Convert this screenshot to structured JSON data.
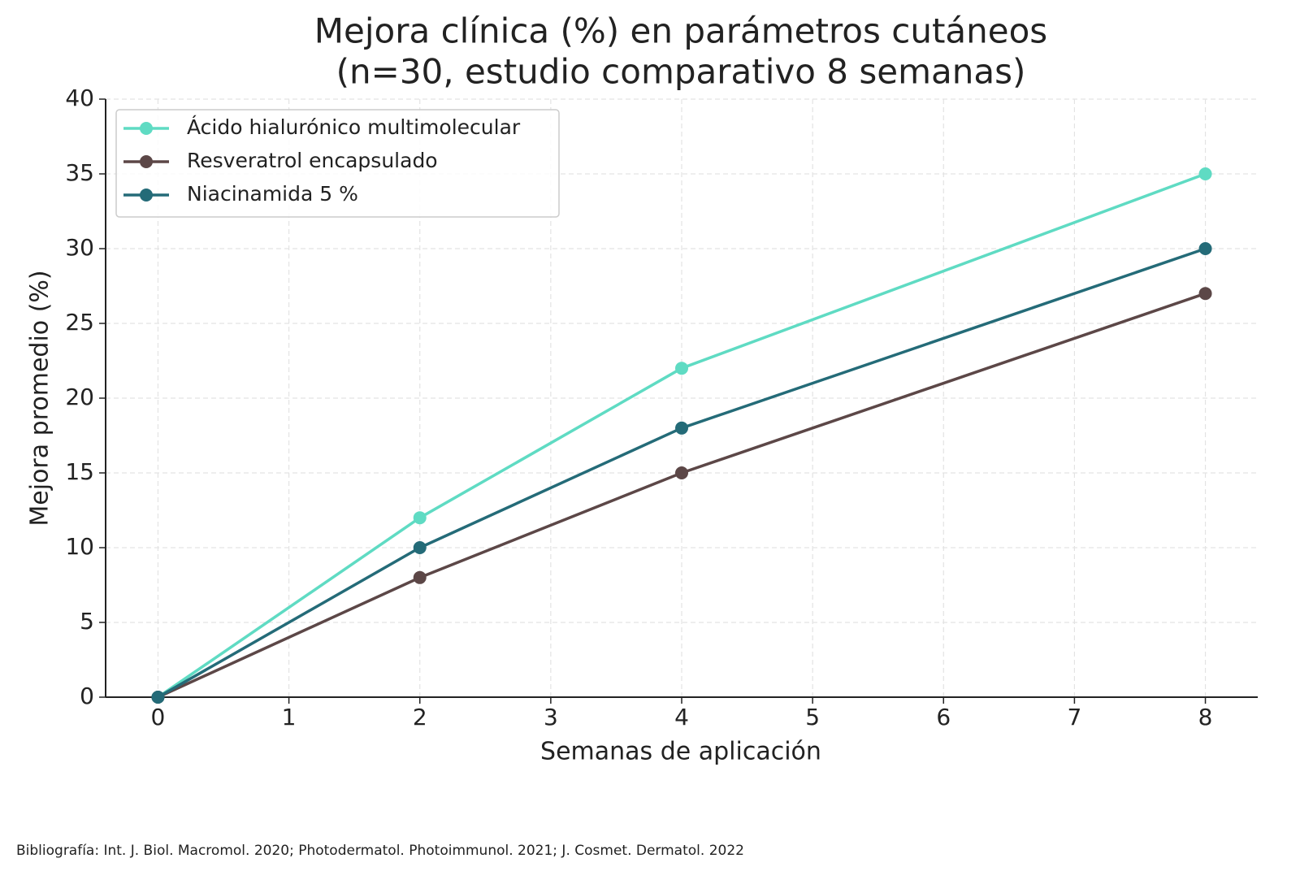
{
  "chart_data": {
    "type": "line",
    "title": [
      "Mejora clínica (%) en parámetros cutáneos",
      "(n=30, estudio comparativo 8 semanas)"
    ],
    "x_label": "Semanas de aplicación",
    "y_label": "Mejora promedio (%)",
    "footnote": "Bibliografía: Int. J. Biol. Macromol. 2020; Photodermatol. Photoimmunol. 2021; J. Cosmet. Dermatol. 2022",
    "x": [
      0,
      2,
      4,
      8
    ],
    "series": [
      {
        "name": "Ácido hialurónico multimolecular",
        "color": "#5fdbc3",
        "values": [
          0,
          12,
          22,
          35
        ]
      },
      {
        "name": "Resveratrol encapsulado",
        "color": "#5c4747",
        "values": [
          0,
          8,
          15,
          27
        ]
      },
      {
        "name": "Niacinamida 5 %",
        "color": "#246b78",
        "values": [
          0,
          10,
          18,
          30
        ]
      }
    ],
    "xlim": [
      -0.4,
      8.4
    ],
    "xticks": [
      0,
      1,
      2,
      3,
      4,
      5,
      6,
      7,
      8
    ],
    "ylim": [
      0,
      40
    ],
    "yticks": [
      0,
      5,
      10,
      15,
      20,
      25,
      30,
      35,
      40
    ],
    "grid": true,
    "legend": "upper left"
  }
}
